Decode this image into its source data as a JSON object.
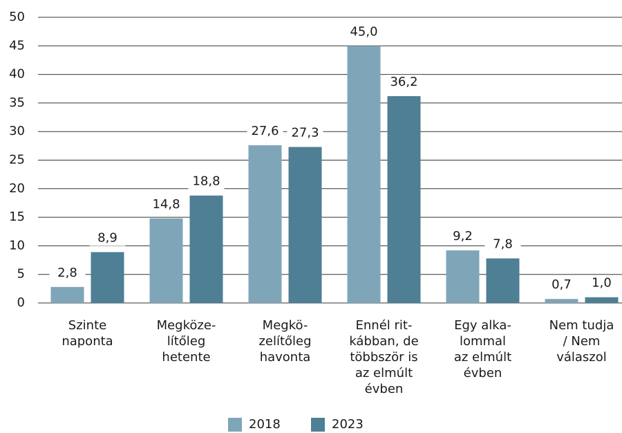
{
  "chart_data": {
    "type": "bar",
    "categories": [
      [
        "Szinte",
        "naponta"
      ],
      [
        "Megköze-",
        "lítőleg",
        "hetente"
      ],
      [
        "Megkö-",
        "zelítőleg",
        "havonta"
      ],
      [
        "Ennél rit-",
        "kábban, de",
        "többször is",
        "az elmúlt",
        "évben"
      ],
      [
        "Egy alka-",
        "lommal",
        "az elmúlt",
        "évben"
      ],
      [
        "Nem tudja",
        "/ Nem",
        "válaszol"
      ]
    ],
    "series": [
      {
        "name": "2018",
        "color": "#7fa5b8",
        "values": [
          2.8,
          14.8,
          27.6,
          45.0,
          9.2,
          0.7
        ],
        "value_labels": [
          "2,8",
          "14,8",
          "27,6",
          "45,0",
          "9,2",
          "0,7"
        ]
      },
      {
        "name": "2023",
        "color": "#4e7f94",
        "values": [
          8.9,
          18.8,
          27.3,
          36.2,
          7.8,
          1.0
        ],
        "value_labels": [
          "8,9",
          "18,8",
          "27,3",
          "36,2",
          "7,8",
          "1,0"
        ]
      }
    ],
    "ylim": [
      0,
      50
    ],
    "yticks": [
      0,
      5,
      10,
      15,
      20,
      25,
      30,
      35,
      40,
      45,
      50
    ],
    "grid": true,
    "legend": "bottom"
  }
}
